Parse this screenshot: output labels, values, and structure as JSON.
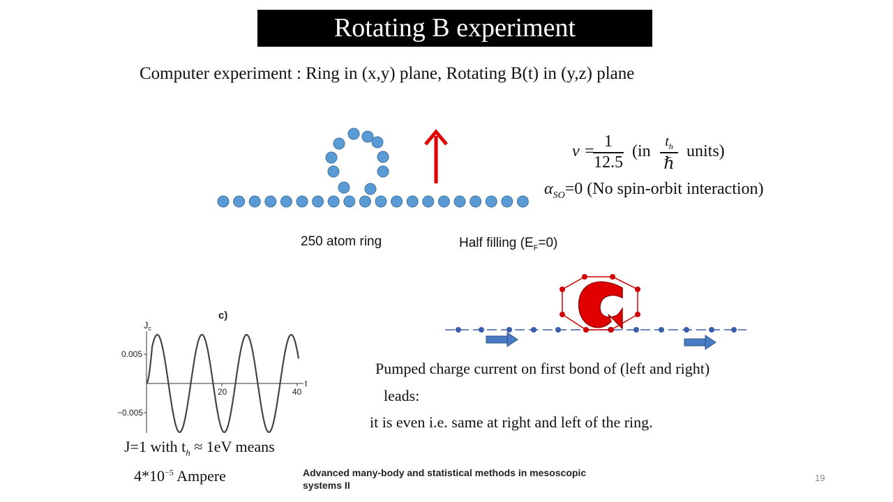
{
  "title": "Rotating B experiment",
  "subtitle": "Computer  experiment : Ring  in (x,y) plane, Rotating  B(t) in (y,z) plane",
  "params": {
    "nu_prefix": "ν =",
    "nu_num": "1",
    "nu_den": "12.5",
    "nu_in": "(in",
    "unit_num": "t",
    "unit_num_sub": "h",
    "unit_den": "ℏ",
    "nu_units": "units)",
    "alpha": "α",
    "alpha_sub": "SO",
    "alpha_rest": "=0 (No spin-orbit interaction)"
  },
  "labels": {
    "ring": "250 atom ring",
    "filling_main": "Half filling (E",
    "filling_sub": "F",
    "filling_end": "=0)"
  },
  "plot": {
    "panel_label": "c)",
    "y_label": "J",
    "y_label_sub": "c",
    "x_label": "t",
    "y_ticks": [
      "0.005",
      "−0.005"
    ],
    "x_ticks": [
      "20",
      "40"
    ]
  },
  "pumped_text": {
    "line1": "Pumped charge current on first bond of (left and right)",
    "line2": "leads:",
    "line3": "it is even  i.e. same at right and left of the ring."
  },
  "conversion": {
    "line1_pre": "J=1 with t",
    "line1_sub": "h",
    "line1_post": " ≈ 1eV  means",
    "line2_pre": "4*10",
    "line2_sup": "−5",
    "line2_post": " Ampere"
  },
  "footer": "Advanced many-body and statistical methods in mesoscopic systems II",
  "page_number": "19",
  "colors": {
    "title_bg": "#000000",
    "atom_fill": "#5b9bd5",
    "atom_stroke": "#41719c",
    "arrow_red": "#e00000",
    "chain_blue": "#3a5fa8",
    "ring_red": "#d00000"
  }
}
